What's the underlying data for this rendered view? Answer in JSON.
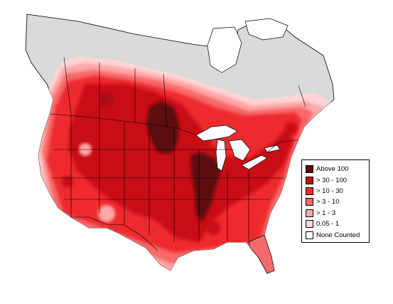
{
  "map": {
    "colors": {
      "none": "#ffffff",
      "no_data": "#dadada",
      "c1": "#ffd5d5",
      "c2": "#ffa6a6",
      "c3": "#f7696b",
      "c4": "#ee2b2f",
      "c5": "#c80a14",
      "c6": "#5c0a0c",
      "border": "#000000"
    }
  },
  "legend": {
    "items": [
      {
        "label": "Above 100",
        "color": "#5c0a0c"
      },
      {
        "label": "> 30 - 100",
        "color": "#c80a14"
      },
      {
        "label": "> 10 - 30",
        "color": "#ee2b2f"
      },
      {
        "label": "> 3 - 10",
        "color": "#f7696b"
      },
      {
        "label": "> 1 - 3",
        "color": "#ffa6a6"
      },
      {
        "label": "0.05 - 1",
        "color": "#ffd5d5"
      },
      {
        "label": "None Counted",
        "color": "#ffffff"
      }
    ]
  }
}
